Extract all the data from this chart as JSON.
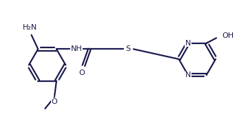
{
  "bg": "#ffffff",
  "lc": "#1a1a4e",
  "tc": "#1a1a4e",
  "lw": 1.6,
  "fs": 8.0,
  "figsize": [
    3.6,
    1.89
  ],
  "dpi": 100,
  "xlim": [
    0.0,
    10.5
  ],
  "ylim": [
    0.3,
    5.8
  ]
}
